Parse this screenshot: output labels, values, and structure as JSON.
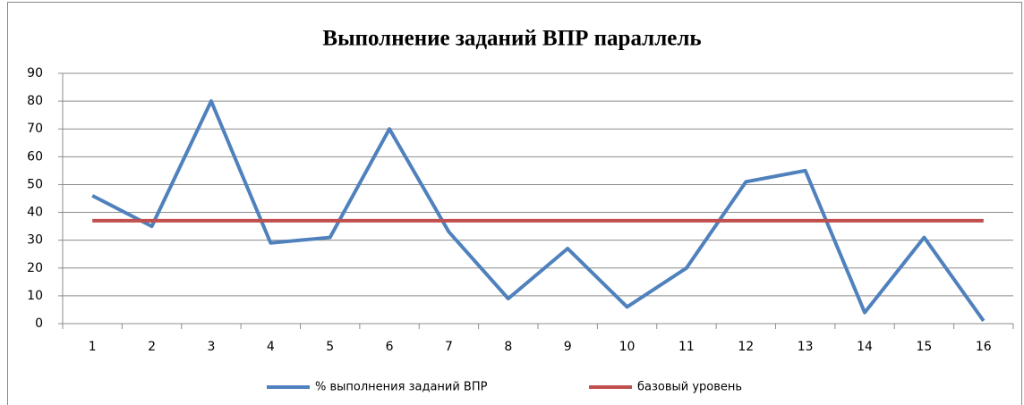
{
  "chart_data": {
    "type": "line",
    "title": "Выполнение заданий ВПР параллель",
    "categories": [
      "1",
      "2",
      "3",
      "4",
      "5",
      "6",
      "7",
      "8",
      "9",
      "10",
      "11",
      "12",
      "13",
      "14",
      "15",
      "16"
    ],
    "series": [
      {
        "name": "% выполнения заданий ВПР",
        "color": "#4f81bd",
        "values": [
          46,
          35,
          80,
          29,
          31,
          70,
          33,
          9,
          27,
          6,
          20,
          51,
          55,
          4,
          31,
          1
        ]
      },
      {
        "name": "базовый уровень",
        "color": "#c0504d",
        "values": [
          37,
          37,
          37,
          37,
          37,
          37,
          37,
          37,
          37,
          37,
          37,
          37,
          37,
          37,
          37,
          37
        ]
      }
    ],
    "ylim": [
      0,
      90
    ],
    "yticks": [
      0,
      10,
      20,
      30,
      40,
      50,
      60,
      70,
      80,
      90
    ],
    "grid": true,
    "legend": "bottom"
  }
}
